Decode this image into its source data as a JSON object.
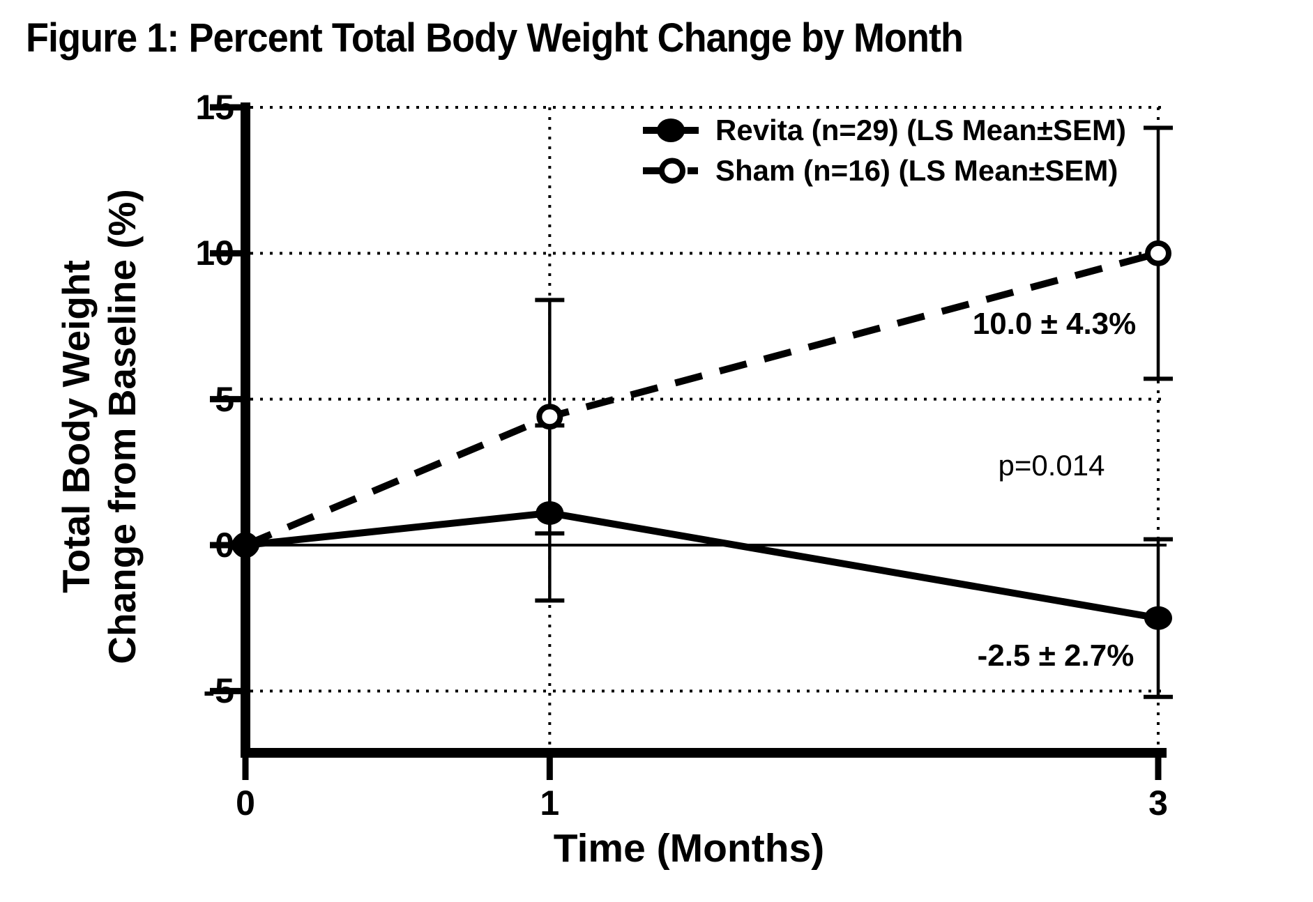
{
  "figure": {
    "title": "Figure 1: Percent Total Body Weight Change by Month"
  },
  "legend": {
    "position": "top-right",
    "items": [
      {
        "label": "Revita (n=29) (LS Mean±SEM)",
        "marker": "filled-circle",
        "line": "solid"
      },
      {
        "label": "Sham (n=16) (LS Mean±SEM)",
        "marker": "open-circle",
        "line": "dashed"
      }
    ]
  },
  "axes": {
    "x": {
      "label": "Time (Months)",
      "ticks": [
        0,
        1,
        3
      ],
      "range": [
        0,
        3
      ]
    },
    "y": {
      "label_line1": "Total Body Weight",
      "label_line2": "Change from Baseline (%)",
      "ticks": [
        15,
        10,
        5,
        0,
        -5
      ],
      "range": [
        -5,
        15
      ]
    }
  },
  "annotations": [
    {
      "id": "sham-month3-value",
      "text": "10.0 ± 4.3%",
      "weight": "bold"
    },
    {
      "id": "p-value",
      "text": "p=0.014",
      "weight": "normal"
    },
    {
      "id": "revita-month3-value",
      "text": "-2.5 ± 2.7%",
      "weight": "bold"
    }
  ],
  "colors": {
    "foreground": "#000000",
    "background": "#ffffff"
  },
  "chart_data": {
    "type": "line",
    "title": "Figure 1: Percent Total Body Weight Change by Month",
    "x": [
      0,
      1,
      3
    ],
    "xlabel": "Time (Months)",
    "ylabel": "Total Body Weight Change from Baseline (%)",
    "ylim": [
      -5,
      15
    ],
    "xticks": [
      0,
      1,
      3
    ],
    "yticks": [
      15,
      10,
      5,
      0,
      -5
    ],
    "legend_position": "top-right",
    "grid": {
      "h_dotted": [
        15,
        10,
        5,
        -5
      ],
      "h_solid": [
        0
      ],
      "v_dotted": [
        1,
        3
      ]
    },
    "series": [
      {
        "name": "Revita (n=29) (LS Mean±SEM)",
        "values": [
          0,
          1.1,
          -2.5
        ],
        "sem": [
          0,
          3.0,
          2.7
        ],
        "line": "solid",
        "marker": "filled"
      },
      {
        "name": "Sham (n=16) (LS Mean±SEM)",
        "values": [
          0,
          4.4,
          10.0
        ],
        "sem": [
          0,
          4.0,
          4.3
        ],
        "line": "dashed",
        "marker": "open"
      }
    ]
  }
}
